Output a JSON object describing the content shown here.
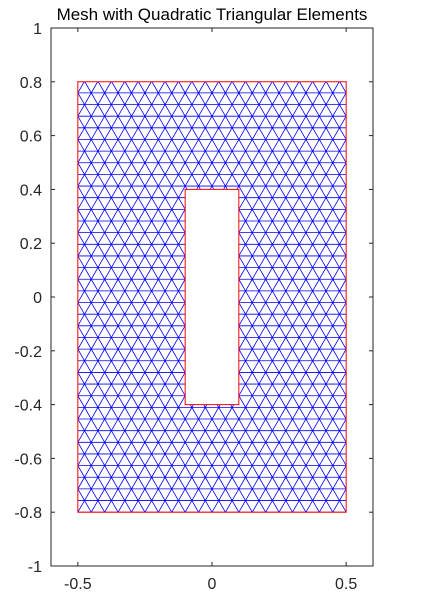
{
  "chart_data": {
    "type": "mesh",
    "title": "Mesh with Quadratic Triangular Elements",
    "xlabel": "",
    "ylabel": "",
    "xlim": [
      -0.6,
      0.6
    ],
    "ylim": [
      -1,
      1
    ],
    "xticks": [
      -0.5,
      0,
      0.5
    ],
    "xtick_labels": [
      "-0.5",
      "0",
      "0.5"
    ],
    "yticks": [
      1,
      0.8,
      0.6,
      0.4,
      0.2,
      0,
      -0.2,
      -0.4,
      -0.6,
      -0.8,
      -1
    ],
    "ytick_labels": [
      "1",
      "0.8",
      "0.6",
      "0.4",
      "0.2",
      "0",
      "-0.2",
      "-0.4",
      "-0.6",
      "-0.8",
      "-1"
    ],
    "grid": false,
    "geometry": {
      "outer_rectangle": {
        "x": [
          -0.5,
          0.5
        ],
        "y": [
          -0.8,
          0.8
        ]
      },
      "inner_hole": {
        "x": [
          -0.1,
          0.1
        ],
        "y": [
          -0.4,
          0.4
        ]
      }
    },
    "mesh_element_size": 0.05,
    "colors": {
      "mesh_edges": "#0000ff",
      "boundary": "#ff0000",
      "axes": "#262626"
    }
  }
}
